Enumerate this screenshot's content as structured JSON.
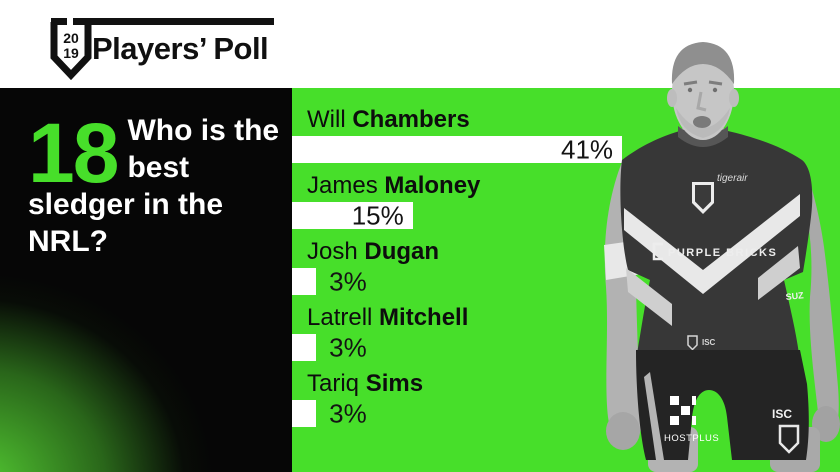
{
  "header": {
    "logo": {
      "year_top": "20",
      "year_bottom": "19",
      "title": "Players’ Poll"
    }
  },
  "question": {
    "number": "18",
    "text": "Who is the best sledger in the NRL?"
  },
  "chart_data": {
    "type": "bar",
    "orientation": "horizontal",
    "title": "Who is the best sledger in the NRL?",
    "unit": "%",
    "categories": [
      "Will Chambers",
      "James Maloney",
      "Josh Dugan",
      "Latrell Mitchell",
      "Tariq Sims"
    ],
    "values": [
      41,
      15,
      3,
      3,
      3
    ],
    "items": [
      {
        "first": "Will",
        "last": "Chambers",
        "value": 41,
        "value_label": "41%"
      },
      {
        "first": "James",
        "last": "Maloney",
        "value": 15,
        "value_label": "15%"
      },
      {
        "first": "Josh",
        "last": "Dugan",
        "value": 3,
        "value_label": "3%"
      },
      {
        "first": "Latrell",
        "last": "Mitchell",
        "value": 3,
        "value_label": "3%"
      },
      {
        "first": "Tariq",
        "last": "Sims",
        "value": 3,
        "value_label": "3%"
      }
    ],
    "bar_color": "#ffffff",
    "label_color": "#0d0d0d",
    "background": "#47df2a",
    "legend": false,
    "grid": false
  },
  "colors": {
    "accent_green": "#47df2a",
    "panel_black": "#060606",
    "header_white": "#ffffff"
  },
  "player": {
    "sponsors": {
      "tigerair": "tigerair",
      "purple_bricks": "PURPLE BRICKS",
      "suzuki": "SUZ",
      "hostplus": "HOSTPLUS",
      "isc": "ISC",
      "isc_waist": "ISC"
    }
  }
}
